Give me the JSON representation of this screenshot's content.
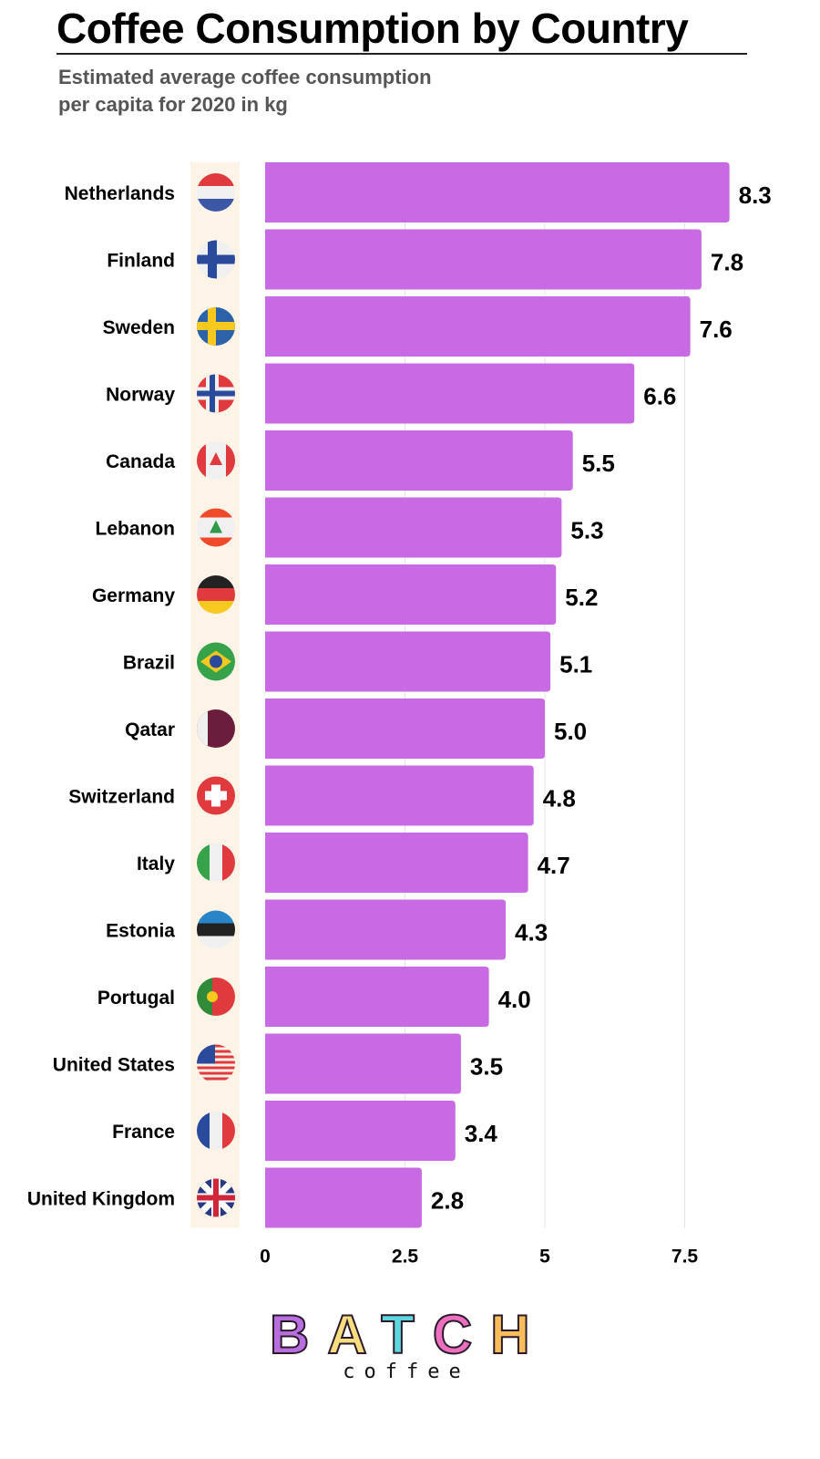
{
  "title": "Coffee Consumption by Country",
  "subtitle_line1": "Estimated average coffee consumption",
  "subtitle_line2": "per capita for 2020 in kg",
  "chart_data": {
    "type": "bar",
    "orientation": "horizontal",
    "categories": [
      "Netherlands",
      "Finland",
      "Sweden",
      "Norway",
      "Canada",
      "Lebanon",
      "Germany",
      "Brazil",
      "Qatar",
      "Switzerland",
      "Italy",
      "Estonia",
      "Portugal",
      "United States",
      "France",
      "United Kingdom"
    ],
    "values": [
      8.3,
      7.8,
      7.6,
      6.6,
      5.5,
      5.3,
      5.2,
      5.1,
      5.0,
      4.8,
      4.7,
      4.3,
      4.0,
      3.5,
      3.4,
      2.8
    ],
    "value_labels": [
      "8.3",
      "7.8",
      "7.6",
      "6.6",
      "5.5",
      "5.3",
      "5.2",
      "5.1",
      "5.0",
      "4.8",
      "4.7",
      "4.3",
      "4.0",
      "3.5",
      "3.4",
      "2.8"
    ],
    "icons": [
      "netherlands-flag-icon",
      "finland-flag-icon",
      "sweden-flag-icon",
      "norway-flag-icon",
      "canada-flag-icon",
      "lebanon-flag-icon",
      "germany-flag-icon",
      "brazil-flag-icon",
      "qatar-flag-icon",
      "switzerland-flag-icon",
      "italy-flag-icon",
      "estonia-flag-icon",
      "portugal-flag-icon",
      "united-states-flag-icon",
      "france-flag-icon",
      "united-kingdom-flag-icon"
    ],
    "xticks": [
      0,
      2.5,
      5,
      7.5
    ],
    "xtick_labels": [
      "0",
      "2.5",
      "5",
      "7.5"
    ],
    "xlim": [
      0,
      8.3
    ],
    "grid": "vertical",
    "xlabel": "",
    "ylabel": "",
    "bar_color": "#c76ae3",
    "flag_strip_color": "#fdf3e7"
  },
  "logo": {
    "word": "BATCH",
    "sub": "coffee",
    "letter_colors": [
      "#b96ee0",
      "#f7dd7f",
      "#5dd8e0",
      "#ec6fbf",
      "#f7bd5b"
    ]
  }
}
